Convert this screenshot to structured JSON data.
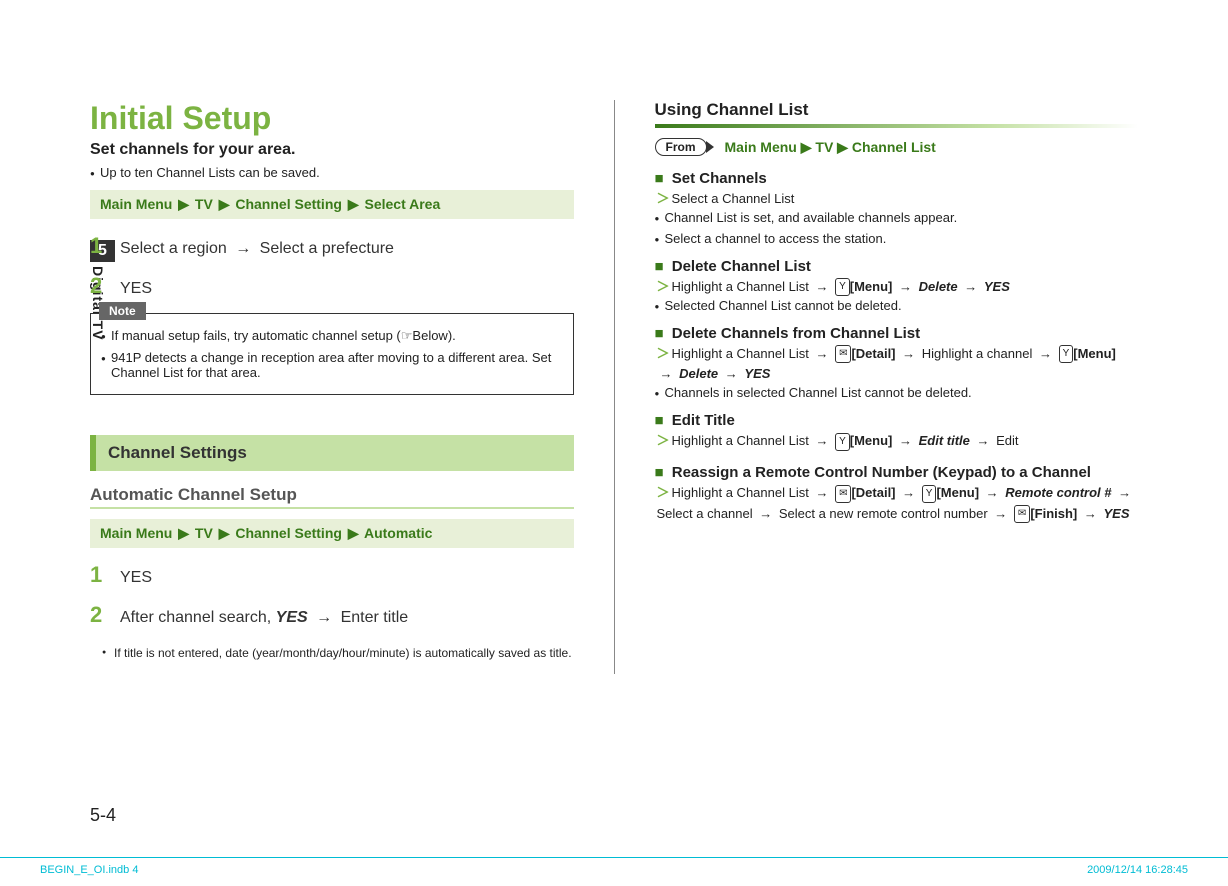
{
  "left": {
    "mainTitle": "Initial Setup",
    "subtitle": "Set channels for your area.",
    "topBullet": "Up to ten Channel Lists can be saved.",
    "nav1": {
      "a": "Main Menu",
      "b": "TV",
      "c": "Channel Setting",
      "d": "Select Area"
    },
    "step1": {
      "num": "1",
      "text1": "Select a region",
      "text2": "Select a prefecture"
    },
    "step2": {
      "num": "2",
      "text": "YES"
    },
    "noteLabel": "Note",
    "noteB1": "If manual setup fails, try automatic channel setup (☞Below).",
    "noteB2": "941P detects a change in reception area after moving to a different area. Set Channel List for that area.",
    "sectionBar": "Channel Settings",
    "autoHeading": "Automatic Channel Setup",
    "nav2": {
      "a": "Main Menu",
      "b": "TV",
      "c": "Channel Setting",
      "d": "Automatic"
    },
    "aStep1": {
      "num": "1",
      "text": "YES"
    },
    "aStep2": {
      "num": "2",
      "text1": "After channel search,",
      "bold": "YES",
      "text2": "Enter title"
    },
    "aStep2Sub": "If title is not entered, date (year/month/day/hour/minute) is automatically saved as title."
  },
  "right": {
    "heading": "Using Channel List",
    "fromLabel": "From",
    "fromNav": {
      "a": "Main Menu",
      "b": "TV",
      "c": "Channel List"
    },
    "items": [
      {
        "title": "Set Channels",
        "lines": [
          {
            "chev": true,
            "text": "Select a Channel List"
          },
          {
            "bullet": true,
            "text": "Channel List is set, and available channels appear."
          },
          {
            "bullet": true,
            "text": "Select a channel to access the station."
          }
        ]
      },
      {
        "title": "Delete Channel List",
        "lines": [
          {
            "chev": true,
            "parts": [
              "Highlight a Channel List",
              "arrow",
              {
                "icon": "Y"
              },
              {
                "boldn": "[Menu]"
              },
              "arrow",
              {
                "bold": "Delete"
              },
              "arrow",
              {
                "bold": "YES"
              }
            ]
          },
          {
            "bullet": true,
            "text": "Selected Channel List cannot be deleted."
          }
        ]
      },
      {
        "title": "Delete Channels from Channel List",
        "lines": [
          {
            "chev": true,
            "parts": [
              "Highlight a Channel List",
              "arrow",
              {
                "icon": "✉"
              },
              {
                "boldn": "[Detail]"
              },
              "arrow",
              "Highlight a channel",
              "arrow",
              {
                "icon": "Y"
              },
              {
                "boldn": "[Menu]"
              },
              "arrow",
              {
                "bold": "Delete"
              },
              "arrow",
              {
                "bold": "YES"
              }
            ]
          },
          {
            "bullet": true,
            "text": "Channels in selected Channel List cannot be deleted."
          }
        ]
      },
      {
        "title": "Edit Title",
        "lines": [
          {
            "chev": true,
            "parts": [
              "Highlight a Channel List",
              "arrow",
              {
                "icon": "Y"
              },
              {
                "boldn": "[Menu]"
              },
              "arrow",
              {
                "bold": "Edit title"
              },
              "arrow",
              "Edit"
            ]
          }
        ]
      },
      {
        "title": "Reassign a Remote Control Number (Keypad) to a Channel",
        "lines": [
          {
            "chev": true,
            "parts": [
              "Highlight a Channel List",
              "arrow",
              {
                "icon": "✉"
              },
              {
                "boldn": "[Detail]"
              },
              "arrow",
              {
                "icon": "Y"
              },
              {
                "boldn": "[Menu]"
              },
              "arrow",
              {
                "bold": "Remote control #"
              },
              "arrow",
              "Select a channel",
              "arrow",
              "Select a new remote control number",
              "arrow",
              {
                "icon": "✉"
              },
              {
                "boldn": "[Finish]"
              },
              "arrow",
              {
                "bold": "YES"
              }
            ]
          }
        ]
      }
    ]
  },
  "side": {
    "chapter": "5",
    "label": "Digital TV"
  },
  "pageNum": "5-4",
  "footer": {
    "left": "BEGIN_E_OI.indb   4",
    "right": "2009/12/14   16:28:45"
  }
}
